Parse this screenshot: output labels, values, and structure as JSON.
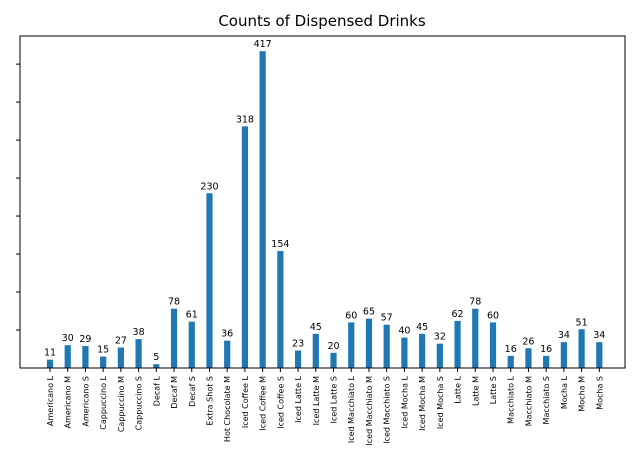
{
  "chart_data": {
    "type": "bar",
    "title": "Counts of Dispensed Drinks",
    "xlabel": "",
    "ylabel": "",
    "ylim": [
      0,
      437
    ],
    "y_tick_labels_visible": false,
    "grid": false,
    "legend": "none",
    "bar_color": "#1f77b4",
    "categories": [
      "Americano L",
      "Americano M",
      "Americano S",
      "Cappuccino L",
      "Cappuccino M",
      "Cappuccino S",
      "Decaf L",
      "Decaf M",
      "Decaf S",
      "Extra Shot S",
      "Hot Chocolate M",
      "Iced Coffee L",
      "Iced Coffee M",
      "Iced Coffee S",
      "Iced Latte L",
      "Iced Latte M",
      "Iced Latte S",
      "Iced Macchiato L",
      "Iced Macchiato M",
      "Iced Macchiato S",
      "Iced Mocha L",
      "Iced Mocha M",
      "Iced Mocha S",
      "Latte L",
      "Latte M",
      "Latte S",
      "Macchiato L",
      "Macchiato M",
      "Macchiato S",
      "Mocha L",
      "Mocha M",
      "Mocha S"
    ],
    "values": [
      11,
      30,
      29,
      15,
      27,
      38,
      5,
      78,
      61,
      230,
      36,
      318,
      417,
      154,
      23,
      45,
      20,
      60,
      65,
      57,
      40,
      45,
      32,
      62,
      78,
      60,
      16,
      26,
      16,
      34,
      51,
      34
    ]
  }
}
